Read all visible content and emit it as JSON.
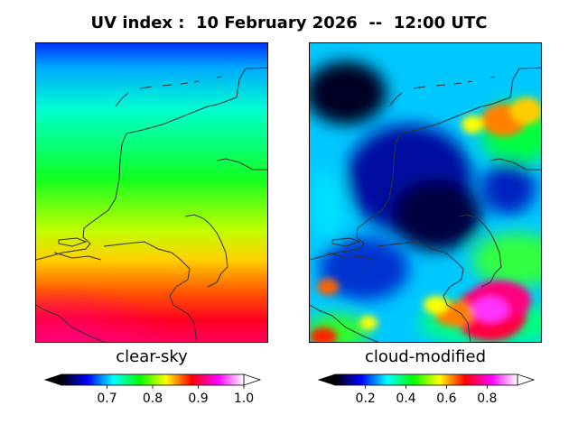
{
  "title": "UV index :  10 February 2026  --  12:00 UTC",
  "panels": [
    {
      "label": "clear-sky",
      "colorbar": {
        "min": 0.6,
        "max": 1.0,
        "ticks": [
          "0.7",
          "0.8",
          "0.9",
          "1.0"
        ],
        "tick_values": [
          0.7,
          0.8,
          0.9,
          1.0
        ],
        "extend": "both"
      }
    },
    {
      "label": "cloud-modified",
      "colorbar": {
        "min": 0.05,
        "max": 0.95,
        "ticks": [
          "0.2",
          "0.4",
          "0.6",
          "0.8"
        ],
        "tick_values": [
          0.2,
          0.4,
          0.6,
          0.8
        ],
        "extend": "both"
      }
    }
  ],
  "colormap": [
    "#000000",
    "#0000ff",
    "#00ffff",
    "#00ff00",
    "#ffff00",
    "#ff0000",
    "#ff00ff",
    "#ffffff"
  ],
  "coastline_color": "#333333"
}
